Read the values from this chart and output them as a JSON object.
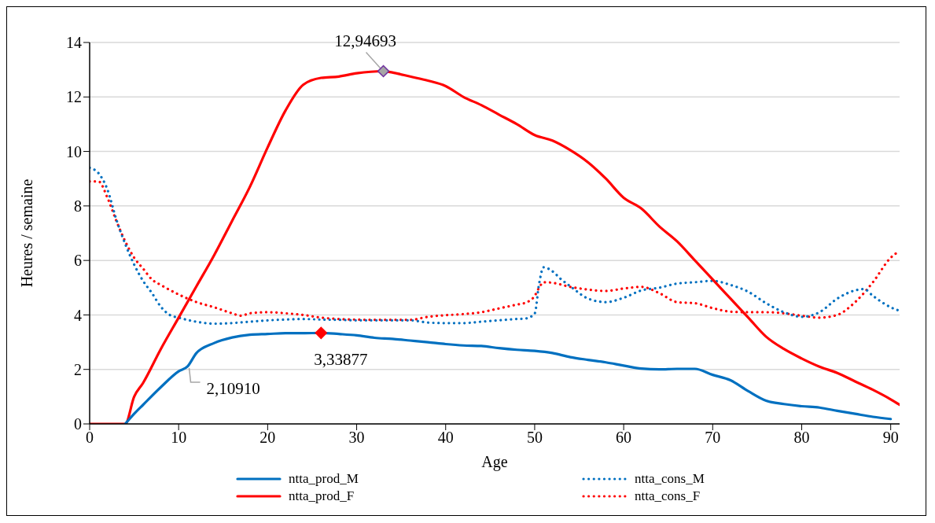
{
  "chart_data": {
    "type": "line",
    "xlabel": "Age",
    "ylabel": "Heures / semaine",
    "xlim": [
      0,
      91
    ],
    "xticks": [
      0,
      10,
      20,
      30,
      40,
      50,
      60,
      70,
      80,
      90
    ],
    "ylim": [
      0,
      14
    ],
    "yticks": [
      0,
      2,
      4,
      6,
      8,
      10,
      12,
      14
    ],
    "grid": "y",
    "legend": "bottom",
    "marker": "none",
    "series": [
      {
        "name": "ntta_prod_M",
        "color": "#0070c0",
        "line_style": "solid",
        "x": [
          4,
          5,
          6,
          8,
          10,
          11,
          12,
          14,
          16,
          18,
          20,
          22,
          24,
          26,
          28,
          30,
          32,
          34,
          36,
          38,
          40,
          42,
          44,
          46,
          48,
          50,
          52,
          54,
          56,
          58,
          60,
          62,
          64,
          66,
          68,
          70,
          72,
          74,
          76,
          78,
          80,
          82,
          84,
          86,
          88,
          90
        ],
        "values": [
          0,
          0.37,
          0.7,
          1.35,
          1.93,
          2.1091,
          2.6,
          2.97,
          3.17,
          3.27,
          3.3,
          3.33,
          3.33,
          3.33877,
          3.3,
          3.25,
          3.16,
          3.12,
          3.06,
          3.0,
          2.93,
          2.88,
          2.86,
          2.78,
          2.72,
          2.68,
          2.6,
          2.45,
          2.35,
          2.26,
          2.14,
          2.03,
          2.0,
          2.02,
          2.02,
          1.8,
          1.6,
          1.2,
          0.85,
          0.73,
          0.65,
          0.6,
          0.48,
          0.37,
          0.26,
          0.18
        ]
      },
      {
        "name": "ntta_cons_M",
        "color": "#0070c0",
        "line_style": "dotted",
        "x": [
          0,
          1,
          2,
          3,
          4,
          5,
          6,
          7,
          8,
          9,
          10,
          12,
          14,
          16,
          18,
          20,
          22,
          24,
          26,
          28,
          30,
          32,
          34,
          36,
          38,
          40,
          42,
          44,
          46,
          48,
          49,
          50,
          50.5,
          51,
          52,
          53,
          54,
          56,
          58,
          60,
          62,
          64,
          66,
          68,
          70,
          72,
          74,
          76,
          78,
          80,
          82,
          84,
          86,
          87,
          88,
          90,
          91
        ],
        "values": [
          9.4,
          9.2,
          8.6,
          7.5,
          6.6,
          5.85,
          5.25,
          4.8,
          4.3,
          4.0,
          3.9,
          3.75,
          3.68,
          3.7,
          3.75,
          3.8,
          3.83,
          3.85,
          3.83,
          3.82,
          3.8,
          3.8,
          3.8,
          3.8,
          3.72,
          3.7,
          3.7,
          3.75,
          3.8,
          3.85,
          3.87,
          4.05,
          5.15,
          5.75,
          5.6,
          5.3,
          5.05,
          4.6,
          4.47,
          4.63,
          4.9,
          5.0,
          5.15,
          5.2,
          5.25,
          5.1,
          4.85,
          4.43,
          4.1,
          3.93,
          4.1,
          4.6,
          4.9,
          4.95,
          4.7,
          4.28,
          4.15
        ]
      },
      {
        "name": "ntta_prod_F",
        "color": "#ff0000",
        "line_style": "solid",
        "x": [
          0,
          4,
          5,
          6,
          8,
          10,
          12,
          14,
          16,
          18,
          20,
          22,
          24,
          26,
          28,
          30,
          33,
          34,
          36,
          38,
          40,
          42,
          44,
          46,
          48,
          50,
          52,
          54,
          56,
          58,
          60,
          62,
          64,
          66,
          68,
          70,
          72,
          74,
          76,
          78,
          80,
          82,
          84,
          86,
          88,
          90,
          91
        ],
        "values": [
          0,
          0,
          1.0,
          1.5,
          2.75,
          3.9,
          5.05,
          6.2,
          7.45,
          8.7,
          10.15,
          11.5,
          12.45,
          12.7,
          12.75,
          12.87,
          12.94693,
          12.9,
          12.75,
          12.6,
          12.4,
          12.0,
          11.7,
          11.35,
          11.0,
          10.6,
          10.4,
          10.05,
          9.6,
          9.0,
          8.3,
          7.9,
          7.25,
          6.7,
          6.0,
          5.3,
          4.6,
          3.9,
          3.2,
          2.75,
          2.4,
          2.1,
          1.87,
          1.56,
          1.25,
          0.9,
          0.7
        ]
      },
      {
        "name": "ntta_cons_F",
        "color": "#ff0000",
        "line_style": "dotted",
        "x": [
          0,
          1,
          2,
          3,
          4,
          5,
          6,
          7,
          8,
          10,
          12,
          14,
          16,
          17,
          18,
          20,
          22,
          24,
          26,
          28,
          30,
          32,
          34,
          36,
          38,
          40,
          42,
          44,
          46,
          48,
          49,
          50,
          50.5,
          51,
          52,
          54,
          56,
          58,
          60,
          62,
          64,
          66,
          68,
          70,
          72,
          74,
          76,
          78,
          80,
          82,
          84,
          86,
          88,
          90,
          91
        ],
        "values": [
          8.9,
          8.9,
          8.3,
          7.45,
          6.7,
          6.1,
          5.7,
          5.3,
          5.1,
          4.75,
          4.47,
          4.28,
          4.06,
          3.97,
          4.06,
          4.1,
          4.06,
          4.0,
          3.9,
          3.85,
          3.83,
          3.82,
          3.82,
          3.82,
          3.93,
          3.99,
          4.03,
          4.1,
          4.24,
          4.38,
          4.45,
          4.7,
          5.0,
          5.2,
          5.18,
          5.03,
          4.93,
          4.88,
          4.97,
          5.03,
          4.8,
          4.47,
          4.43,
          4.25,
          4.12,
          4.1,
          4.1,
          4.06,
          3.97,
          3.9,
          4.0,
          4.47,
          5.2,
          6.1,
          6.35
        ]
      }
    ],
    "annotations": [
      {
        "text": "2,10910",
        "x": 11,
        "y": 2.1091
      },
      {
        "text": "3,33877",
        "x": 26,
        "y": 3.33877
      },
      {
        "text": "12,94693",
        "x": 33,
        "y": 12.94693
      }
    ]
  }
}
